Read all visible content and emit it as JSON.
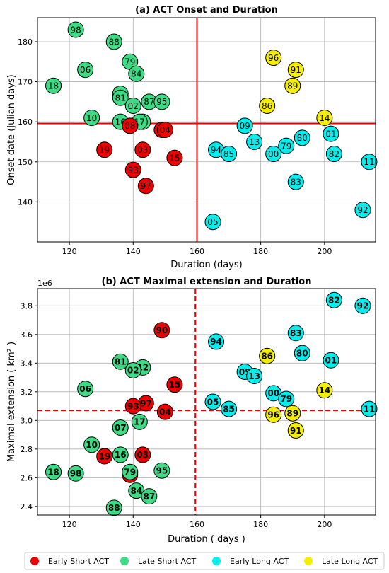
{
  "colors": {
    "early_short": "#ee0000",
    "late_short": "#3ddc84",
    "early_long": "#00eeee",
    "late_long": "#f5ee00",
    "threshold": "#ee0000"
  },
  "legend": [
    {
      "group": "early_short",
      "label": "Early Short ACT"
    },
    {
      "group": "late_short",
      "label": "Late Short ACT"
    },
    {
      "group": "early_long",
      "label": "Early Long ACT"
    },
    {
      "group": "late_long",
      "label": "Late Long ACT"
    }
  ],
  "chart_data": [
    {
      "type": "scatter",
      "title": "(a) ACT Onset and Duration",
      "xlabel": "Duration (days)",
      "ylabel": "Onset date (Julian days)",
      "xlim": [
        110,
        216
      ],
      "ylim": [
        130,
        186
      ],
      "xticks": [
        120,
        140,
        160,
        180,
        200
      ],
      "yticks": [
        140,
        150,
        160,
        170,
        180
      ],
      "x_tick_labels": [
        "120",
        "140",
        "160",
        "180",
        "200"
      ],
      "y_tick_labels": [
        "140",
        "150",
        "160",
        "170",
        "180"
      ],
      "grid": true,
      "threshold_lines": {
        "x": 160,
        "y": 159.6,
        "style": "solid"
      },
      "points": [
        {
          "label": "98",
          "x": 122,
          "y": 183,
          "group": "late_short"
        },
        {
          "label": "88",
          "x": 134,
          "y": 180,
          "group": "late_short"
        },
        {
          "label": "79",
          "x": 139,
          "y": 175,
          "group": "late_short"
        },
        {
          "label": "06",
          "x": 125,
          "y": 173,
          "group": "late_short"
        },
        {
          "label": "84",
          "x": 141,
          "y": 172,
          "group": "late_short"
        },
        {
          "label": "18",
          "x": 115,
          "y": 169,
          "group": "late_short"
        },
        {
          "label": "07",
          "x": 136,
          "y": 167,
          "group": "late_short"
        },
        {
          "label": "81",
          "x": 136,
          "y": 166,
          "group": "late_short"
        },
        {
          "label": "87",
          "x": 145,
          "y": 165,
          "group": "late_short"
        },
        {
          "label": "95",
          "x": 149,
          "y": 165,
          "group": "late_short"
        },
        {
          "label": "02",
          "x": 140,
          "y": 164,
          "group": "late_short"
        },
        {
          "label": "10",
          "x": 127,
          "y": 161,
          "group": "late_short"
        },
        {
          "label": "16",
          "x": 136,
          "y": 160,
          "group": "late_short"
        },
        {
          "label": "12",
          "x": 143,
          "y": 160,
          "group": "late_short"
        },
        {
          "label": "17",
          "x": 142,
          "y": 160,
          "group": "late_short"
        },
        {
          "label": "08",
          "x": 139,
          "y": 159,
          "group": "early_short"
        },
        {
          "label": "90",
          "x": 149,
          "y": 158,
          "group": "early_short"
        },
        {
          "label": "04",
          "x": 150,
          "y": 158,
          "group": "early_short"
        },
        {
          "label": "19",
          "x": 131,
          "y": 153,
          "group": "early_short"
        },
        {
          "label": "03",
          "x": 143,
          "y": 153,
          "group": "early_short"
        },
        {
          "label": "15",
          "x": 153,
          "y": 151,
          "group": "early_short"
        },
        {
          "label": "93",
          "x": 140,
          "y": 148,
          "group": "early_short"
        },
        {
          "label": "97",
          "x": 144,
          "y": 144,
          "group": "early_short"
        },
        {
          "label": "96",
          "x": 184,
          "y": 176,
          "group": "late_long"
        },
        {
          "label": "91",
          "x": 191,
          "y": 173,
          "group": "late_long"
        },
        {
          "label": "89",
          "x": 190,
          "y": 169,
          "group": "late_long"
        },
        {
          "label": "86",
          "x": 182,
          "y": 164,
          "group": "late_long"
        },
        {
          "label": "14",
          "x": 200,
          "y": 161,
          "group": "late_long"
        },
        {
          "label": "09",
          "x": 175,
          "y": 159,
          "group": "early_long"
        },
        {
          "label": "01",
          "x": 202,
          "y": 157,
          "group": "early_long"
        },
        {
          "label": "80",
          "x": 193,
          "y": 156,
          "group": "early_long"
        },
        {
          "label": "13",
          "x": 178,
          "y": 155,
          "group": "early_long"
        },
        {
          "label": "79",
          "x": 188,
          "y": 154,
          "group": "early_long"
        },
        {
          "label": "94",
          "x": 166,
          "y": 153,
          "group": "early_long"
        },
        {
          "label": "85",
          "x": 170,
          "y": 152,
          "group": "early_long"
        },
        {
          "label": "00",
          "x": 184,
          "y": 152,
          "group": "early_long"
        },
        {
          "label": "82",
          "x": 203,
          "y": 152,
          "group": "early_long"
        },
        {
          "label": "11",
          "x": 214,
          "y": 150,
          "group": "early_long"
        },
        {
          "label": "83",
          "x": 191,
          "y": 145,
          "group": "early_long"
        },
        {
          "label": "92",
          "x": 212,
          "y": 138,
          "group": "early_long"
        },
        {
          "label": "05",
          "x": 165,
          "y": 135,
          "group": "early_long"
        }
      ]
    },
    {
      "type": "scatter",
      "title": "(b) ACT Maximal extension and Duration",
      "xlabel": "Duration ( days )",
      "ylabel": "Maximal extension  ( km² )",
      "y_offset_label": "1e6",
      "xlim": [
        110,
        216
      ],
      "ylim": [
        2.34,
        3.92
      ],
      "xticks": [
        120,
        140,
        160,
        180,
        200
      ],
      "yticks": [
        2.4,
        2.6,
        2.8,
        3.0,
        3.2,
        3.4,
        3.6,
        3.8
      ],
      "x_tick_labels": [
        "120",
        "140",
        "160",
        "180",
        "200"
      ],
      "y_tick_labels": [
        "2.4",
        "2.6",
        "2.8",
        "3.0",
        "3.2",
        "3.4",
        "3.6",
        "3.8"
      ],
      "grid": true,
      "threshold_lines": {
        "x": 159.5,
        "y": 3.07,
        "style": "dashed"
      },
      "points": [
        {
          "label": "90",
          "x": 149,
          "y": 3.63,
          "group": "early_short"
        },
        {
          "label": "15",
          "x": 153,
          "y": 3.25,
          "group": "early_short"
        },
        {
          "label": "97",
          "x": 144,
          "y": 3.12,
          "group": "early_short"
        },
        {
          "label": "93",
          "x": 140,
          "y": 3.1,
          "group": "early_short"
        },
        {
          "label": "04",
          "x": 150,
          "y": 3.06,
          "group": "early_short"
        },
        {
          "label": "19",
          "x": 131,
          "y": 2.75,
          "group": "early_short"
        },
        {
          "label": "03",
          "x": 143,
          "y": 2.76,
          "group": "early_short"
        },
        {
          "label": "08",
          "x": 139,
          "y": 2.62,
          "group": "early_short"
        },
        {
          "label": "81",
          "x": 136,
          "y": 3.41,
          "group": "late_short"
        },
        {
          "label": "12",
          "x": 143,
          "y": 3.37,
          "group": "late_short"
        },
        {
          "label": "02",
          "x": 140,
          "y": 3.35,
          "group": "late_short"
        },
        {
          "label": "06",
          "x": 125,
          "y": 3.22,
          "group": "late_short"
        },
        {
          "label": "17",
          "x": 142,
          "y": 2.99,
          "group": "late_short"
        },
        {
          "label": "07",
          "x": 136,
          "y": 2.95,
          "group": "late_short"
        },
        {
          "label": "10",
          "x": 127,
          "y": 2.83,
          "group": "late_short"
        },
        {
          "label": "16",
          "x": 136,
          "y": 2.76,
          "group": "late_short"
        },
        {
          "label": "79",
          "x": 139,
          "y": 2.64,
          "group": "late_short"
        },
        {
          "label": "95",
          "x": 149,
          "y": 2.65,
          "group": "late_short"
        },
        {
          "label": "18",
          "x": 115,
          "y": 2.64,
          "group": "late_short"
        },
        {
          "label": "98",
          "x": 122,
          "y": 2.63,
          "group": "late_short"
        },
        {
          "label": "84",
          "x": 141,
          "y": 2.51,
          "group": "late_short"
        },
        {
          "label": "87",
          "x": 145,
          "y": 2.47,
          "group": "late_short"
        },
        {
          "label": "88",
          "x": 134,
          "y": 2.39,
          "group": "late_short"
        },
        {
          "label": "82",
          "x": 203,
          "y": 3.84,
          "group": "early_long"
        },
        {
          "label": "92",
          "x": 212,
          "y": 3.8,
          "group": "early_long"
        },
        {
          "label": "83",
          "x": 191,
          "y": 3.61,
          "group": "early_long"
        },
        {
          "label": "94",
          "x": 166,
          "y": 3.55,
          "group": "early_long"
        },
        {
          "label": "80",
          "x": 193,
          "y": 3.47,
          "group": "early_long"
        },
        {
          "label": "01",
          "x": 202,
          "y": 3.42,
          "group": "early_long"
        },
        {
          "label": "09",
          "x": 175,
          "y": 3.34,
          "group": "early_long"
        },
        {
          "label": "13",
          "x": 178,
          "y": 3.31,
          "group": "early_long"
        },
        {
          "label": "00",
          "x": 184,
          "y": 3.19,
          "group": "early_long"
        },
        {
          "label": "79",
          "x": 188,
          "y": 3.15,
          "group": "early_long"
        },
        {
          "label": "05",
          "x": 165,
          "y": 3.13,
          "group": "early_long"
        },
        {
          "label": "85",
          "x": 170,
          "y": 3.08,
          "group": "early_long"
        },
        {
          "label": "11",
          "x": 214,
          "y": 3.08,
          "group": "early_long"
        },
        {
          "label": "86",
          "x": 182,
          "y": 3.45,
          "group": "late_long"
        },
        {
          "label": "14",
          "x": 200,
          "y": 3.21,
          "group": "late_long"
        },
        {
          "label": "96",
          "x": 184,
          "y": 3.04,
          "group": "late_long"
        },
        {
          "label": "89",
          "x": 190,
          "y": 3.05,
          "group": "late_long"
        },
        {
          "label": "91",
          "x": 191,
          "y": 2.93,
          "group": "late_long"
        }
      ]
    }
  ]
}
